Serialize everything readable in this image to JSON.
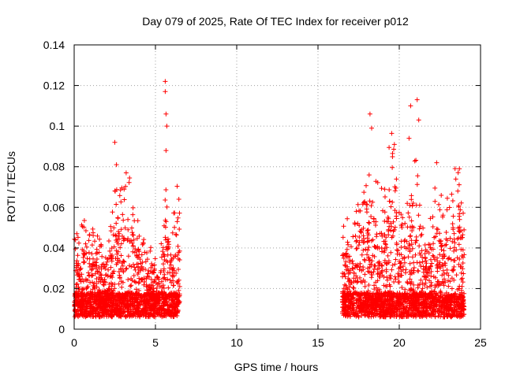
{
  "chart_data": {
    "type": "scatter",
    "title": "Day 079 of 2025, Rate Of TEC Index for receiver p012",
    "xlabel": "GPS time / hours",
    "ylabel": "ROTI / TECUs",
    "xlim": [
      0,
      25
    ],
    "ylim": [
      0,
      0.14
    ],
    "xticks": [
      0,
      5,
      10,
      15,
      20,
      25
    ],
    "xtick_labels": [
      "0",
      "5",
      "10",
      "15",
      "20",
      "25"
    ],
    "yticks": [
      0,
      0.02,
      0.04,
      0.06,
      0.08,
      0.1,
      0.12,
      0.14
    ],
    "ytick_labels": [
      "0",
      "0.02",
      "0.04",
      "0.06",
      "0.08",
      "0.1",
      "0.12",
      "0.14"
    ],
    "grid": true,
    "marker": "+",
    "marker_color": "#ff0000",
    "data_windows_hours": [
      [
        0,
        6.5
      ],
      [
        16.5,
        24
      ]
    ],
    "notable_points": [
      {
        "x": 5.6,
        "y": 0.122
      },
      {
        "x": 5.6,
        "y": 0.117
      },
      {
        "x": 5.65,
        "y": 0.106
      },
      {
        "x": 5.7,
        "y": 0.1
      },
      {
        "x": 5.65,
        "y": 0.088
      },
      {
        "x": 2.5,
        "y": 0.092
      },
      {
        "x": 2.6,
        "y": 0.081
      },
      {
        "x": 3.2,
        "y": 0.077
      },
      {
        "x": 18.2,
        "y": 0.106
      },
      {
        "x": 18.3,
        "y": 0.099
      },
      {
        "x": 19.7,
        "y": 0.091
      },
      {
        "x": 20.7,
        "y": 0.11
      },
      {
        "x": 21.1,
        "y": 0.113
      },
      {
        "x": 21.2,
        "y": 0.103
      },
      {
        "x": 20.6,
        "y": 0.094
      },
      {
        "x": 22.3,
        "y": 0.082
      },
      {
        "x": 23.7,
        "y": 0.079
      }
    ],
    "typical_baseline_range": [
      0.005,
      0.025
    ]
  }
}
